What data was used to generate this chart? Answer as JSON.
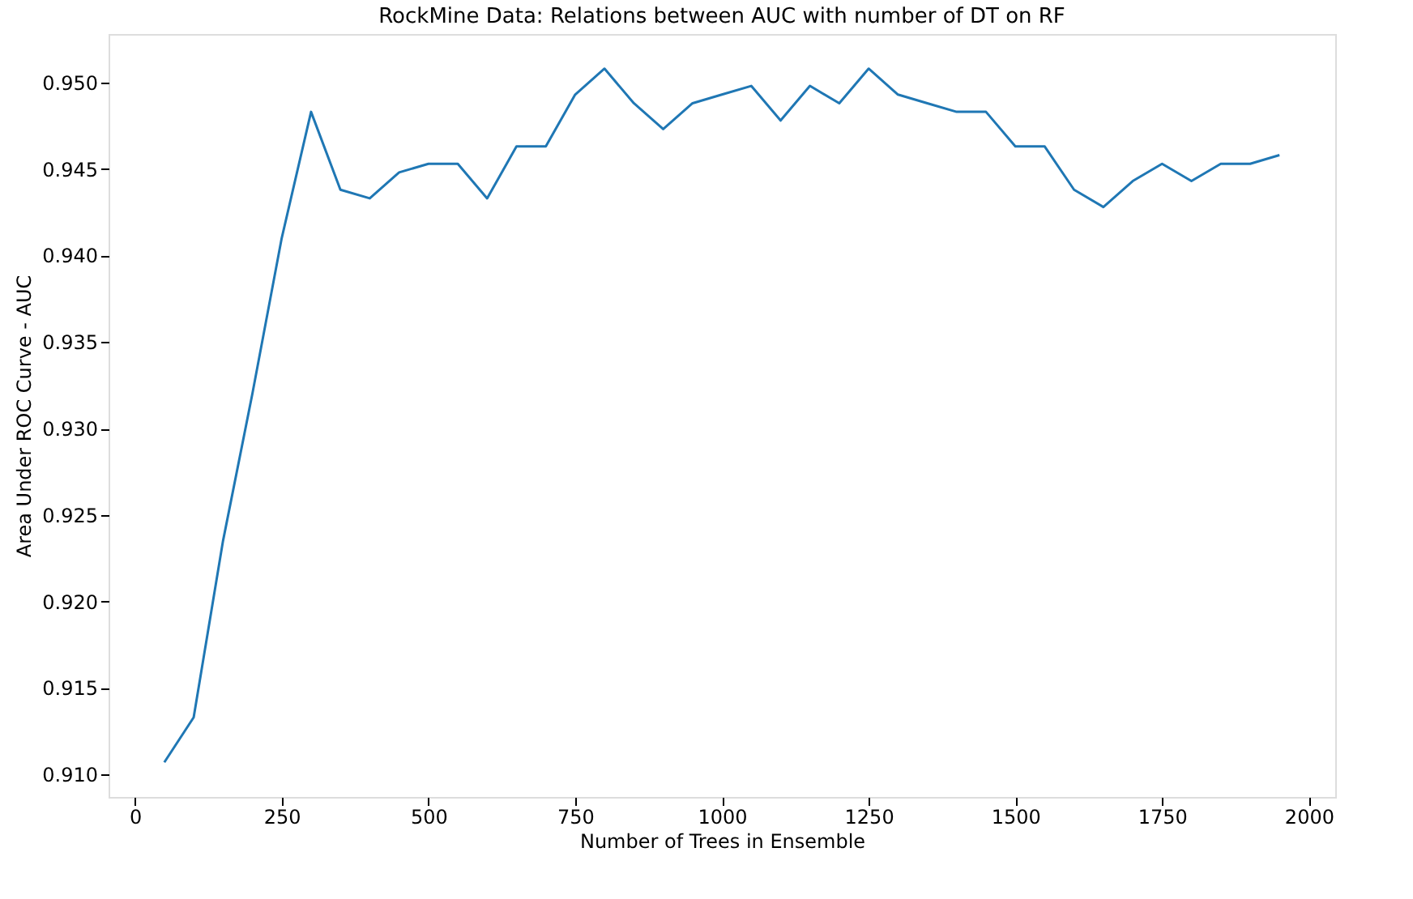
{
  "chart_data": {
    "type": "line",
    "title": "RockMine Data: Relations between AUC with number of DT on RF",
    "xlabel": "Number of Trees in Ensemble",
    "ylabel": "Area Under ROC Curve - AUC",
    "x": [
      50,
      100,
      150,
      200,
      250,
      300,
      350,
      400,
      450,
      500,
      550,
      600,
      650,
      700,
      750,
      800,
      850,
      900,
      950,
      1000,
      1050,
      1100,
      1150,
      1200,
      1250,
      1300,
      1350,
      1400,
      1450,
      1500,
      1550,
      1600,
      1650,
      1700,
      1750,
      1800,
      1850,
      1900,
      1950
    ],
    "series": [
      {
        "color": "#1f77b4",
        "values": [
          0.9107,
          0.9133,
          0.9235,
          0.932,
          0.941,
          0.9483,
          0.9438,
          0.9433,
          0.9448,
          0.9453,
          0.9453,
          0.9433,
          0.9463,
          0.9463,
          0.9493,
          0.9508,
          0.9488,
          0.9473,
          0.9488,
          0.9493,
          0.9498,
          0.9478,
          0.9498,
          0.9488,
          0.9508,
          0.9493,
          0.9488,
          0.9483,
          0.9483,
          0.9463,
          0.9463,
          0.9438,
          0.9428,
          0.9443,
          0.9453,
          0.9443,
          0.9453,
          0.9453,
          0.9458
        ]
      }
    ],
    "xlim": [
      -45,
      2045
    ],
    "ylim": [
      0.9087,
      0.9528
    ],
    "xticks": [
      0,
      250,
      500,
      750,
      1000,
      1250,
      1500,
      1750,
      2000
    ],
    "yticks": [
      {
        "value": 0.91,
        "label": "0.910"
      },
      {
        "value": 0.915,
        "label": "0.915"
      },
      {
        "value": 0.92,
        "label": "0.920"
      },
      {
        "value": 0.925,
        "label": "0.925"
      },
      {
        "value": 0.93,
        "label": "0.930"
      },
      {
        "value": 0.935,
        "label": "0.935"
      },
      {
        "value": 0.94,
        "label": "0.940"
      },
      {
        "value": 0.945,
        "label": "0.945"
      },
      {
        "value": 0.95,
        "label": "0.950"
      }
    ],
    "grid": false,
    "marker": "none",
    "line_style": "solid"
  }
}
